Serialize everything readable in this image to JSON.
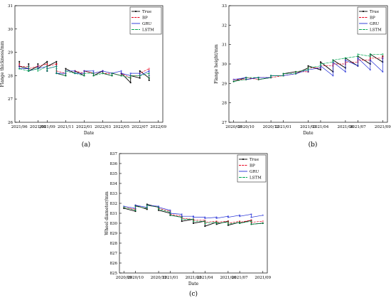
{
  "colors": {
    "True": "#000000",
    "BP": "#e8001c",
    "GRU": "#1f2bd6",
    "LSTM": "#00a651",
    "frame": "#000000"
  },
  "chart_data": [
    {
      "type": "line",
      "panel_label": "(a)",
      "xlabel": "Date",
      "ylabel": "Flange thickness/mm",
      "x_ticks": [
        "2021/06",
        "2021/08",
        "2021/09",
        "2021/11",
        "2022/01",
        "2022/03",
        "2022/05",
        "2022/07",
        "2022/09"
      ],
      "ylim": [
        26,
        31
      ],
      "y_ticks": [
        "26",
        "27",
        "28",
        "29",
        "30",
        "31"
      ],
      "legend": "top-right",
      "grid": false,
      "x": [
        "2021/06",
        "2021/06",
        "2021/07",
        "2021/07",
        "2021/07",
        "2021/08",
        "2021/08",
        "2021/08",
        "2021/09",
        "2021/09",
        "2021/09",
        "2021/10",
        "2021/10",
        "2021/10",
        "2021/11",
        "2021/11",
        "2021/12",
        "2021/12",
        "2022/01",
        "2022/01",
        "2022/02",
        "2022/02",
        "2022/03",
        "2022/03",
        "2022/04",
        "2022/04",
        "2022/05",
        "2022/05",
        "2022/06",
        "2022/06",
        "2022/07",
        "2022/07",
        "2022/08",
        "2022/08"
      ],
      "series": [
        {
          "name": "True",
          "values": [
            28.6,
            28.4,
            28.3,
            28.5,
            28.2,
            28.4,
            28.5,
            28.3,
            28.6,
            28.2,
            28.4,
            28.6,
            28.5,
            28.1,
            28.0,
            28.3,
            28.1,
            28.2,
            28.0,
            28.2,
            28.1,
            28.0,
            28.2,
            28.1,
            28.0,
            28.1,
            28.0,
            28.1,
            27.7,
            28.0,
            27.9,
            28.2,
            27.9,
            27.8
          ]
        },
        {
          "name": "BP",
          "values": [
            28.5,
            28.4,
            28.4,
            28.4,
            28.3,
            28.4,
            28.4,
            28.4,
            28.5,
            28.3,
            28.4,
            28.5,
            28.5,
            28.2,
            28.1,
            28.2,
            28.2,
            28.2,
            28.1,
            28.2,
            28.1,
            28.1,
            28.2,
            28.1,
            28.1,
            28.1,
            28.0,
            28.1,
            27.9,
            28.0,
            28.0,
            28.1,
            28.3,
            28.0
          ]
        },
        {
          "name": "GRU",
          "values": [
            28.4,
            28.3,
            28.3,
            28.4,
            28.2,
            28.3,
            28.4,
            28.3,
            28.4,
            28.2,
            28.3,
            28.4,
            28.4,
            28.1,
            28.1,
            28.2,
            28.2,
            28.1,
            28.1,
            28.2,
            28.2,
            28.1,
            28.2,
            28.2,
            28.1,
            28.1,
            28.2,
            28.1,
            28.0,
            28.1,
            28.1,
            28.0,
            28.2,
            28.0
          ]
        },
        {
          "name": "LSTM",
          "values": [
            28.3,
            28.3,
            28.2,
            28.4,
            28.2,
            28.3,
            28.3,
            28.2,
            28.4,
            28.2,
            28.3,
            28.4,
            28.3,
            28.1,
            28.0,
            28.2,
            28.1,
            28.1,
            28.0,
            28.1,
            28.1,
            28.0,
            28.1,
            28.1,
            28.0,
            28.1,
            28.0,
            28.0,
            27.9,
            28.0,
            28.0,
            28.0,
            28.1,
            27.9
          ]
        }
      ]
    },
    {
      "type": "line",
      "panel_label": "(b)",
      "xlabel": "Date",
      "ylabel": "Flange height/mm",
      "x_ticks": [
        "2020/09",
        "2020/10",
        "2020/12",
        "2021/01",
        "2021/03",
        "2021/04",
        "2021/06",
        "2021/07",
        "2021/09"
      ],
      "ylim": [
        27,
        33
      ],
      "y_ticks": [
        "27",
        "28",
        "29",
        "30",
        "31",
        "32",
        "33"
      ],
      "legend": "top-right",
      "grid": false,
      "x": [
        "2020/09",
        "2020/10",
        "2020/10",
        "2020/11",
        "2020/11",
        "2020/12",
        "2020/12",
        "2021/01",
        "2021/01",
        "2021/02",
        "2021/02",
        "2021/03",
        "2021/03",
        "2021/03",
        "2021/04",
        "2021/04",
        "2021/05",
        "2021/05",
        "2021/06",
        "2021/06",
        "2021/07",
        "2021/07",
        "2021/08",
        "2021/08",
        "2021/09",
        "2021/09"
      ],
      "series": [
        {
          "name": "True",
          "values": [
            29.1,
            29.3,
            29.2,
            29.3,
            29.2,
            29.3,
            29.4,
            29.4,
            29.5,
            29.6,
            29.5,
            29.8,
            29.6,
            29.9,
            29.7,
            30.1,
            29.6,
            30.2,
            29.8,
            30.3,
            29.9,
            30.4,
            30.0,
            30.5,
            30.1,
            30.4
          ]
        },
        {
          "name": "BP",
          "values": [
            29.2,
            29.2,
            29.3,
            29.2,
            29.3,
            29.3,
            29.3,
            29.4,
            29.4,
            29.5,
            29.6,
            29.6,
            29.7,
            29.8,
            29.8,
            29.9,
            29.9,
            30.0,
            30.0,
            30.1,
            30.1,
            30.2,
            30.2,
            30.3,
            30.3,
            30.4
          ]
        },
        {
          "name": "GRU",
          "values": [
            29.2,
            29.3,
            29.2,
            29.3,
            29.3,
            29.3,
            29.4,
            29.4,
            29.4,
            29.5,
            29.5,
            29.7,
            29.6,
            29.7,
            29.8,
            29.9,
            29.4,
            30.1,
            29.6,
            30.2,
            29.9,
            30.3,
            29.7,
            30.2,
            29.6,
            30.3
          ]
        },
        {
          "name": "LSTM",
          "values": [
            29.1,
            29.2,
            29.3,
            29.3,
            29.2,
            29.3,
            29.4,
            29.4,
            29.5,
            29.5,
            29.6,
            29.7,
            29.7,
            29.8,
            29.9,
            30.0,
            30.1,
            30.2,
            30.3,
            30.3,
            30.4,
            30.5,
            30.4,
            30.5,
            30.5,
            30.5
          ]
        }
      ]
    },
    {
      "type": "line",
      "panel_label": "(c)",
      "xlabel": "Date",
      "ylabel": "Wheel diameter/mm",
      "x_ticks": [
        "2020/09",
        "2020/10",
        "2020/12",
        "2021/01",
        "2021/03",
        "2021/04",
        "2021/06",
        "2021/07",
        "2021/09"
      ],
      "ylim": [
        825,
        837
      ],
      "y_ticks": [
        "825",
        "826",
        "827",
        "828",
        "829",
        "830",
        "831",
        "832",
        "833",
        "834",
        "835",
        "836",
        "837"
      ],
      "legend": "top-right",
      "grid": false,
      "x": [
        "2020/09",
        "2020/10",
        "2020/10",
        "2020/11",
        "2020/11",
        "2020/12",
        "2020/12",
        "2021/01",
        "2021/01",
        "2021/02",
        "2021/02",
        "2021/03",
        "2021/03",
        "2021/04",
        "2021/04",
        "2021/05",
        "2021/05",
        "2021/06",
        "2021/06",
        "2021/07",
        "2021/07",
        "2021/08",
        "2021/08",
        "2021/09"
      ],
      "series": [
        {
          "name": "True",
          "values": [
            831.5,
            831.2,
            831.8,
            831.4,
            831.9,
            831.6,
            831.3,
            831.0,
            830.8,
            830.6,
            830.2,
            830.4,
            830.0,
            830.2,
            829.7,
            830.1,
            829.9,
            830.2,
            829.8,
            830.1,
            830.0,
            830.3,
            829.9,
            830.0
          ]
        },
        {
          "name": "BP",
          "values": [
            831.6,
            831.4,
            831.7,
            831.5,
            831.8,
            831.6,
            831.5,
            831.2,
            830.9,
            830.7,
            830.5,
            830.4,
            830.3,
            830.3,
            830.1,
            830.2,
            830.1,
            830.2,
            830.0,
            830.2,
            830.1,
            830.3,
            830.1,
            830.2
          ]
        },
        {
          "name": "GRU",
          "values": [
            831.7,
            831.5,
            831.8,
            831.6,
            831.8,
            831.7,
            831.6,
            831.3,
            831.0,
            830.9,
            830.7,
            830.7,
            830.6,
            830.6,
            830.5,
            830.6,
            830.5,
            830.7,
            830.6,
            830.8,
            830.7,
            830.9,
            830.6,
            830.8
          ]
        },
        {
          "name": "LSTM",
          "values": [
            831.6,
            831.3,
            831.7,
            831.5,
            831.8,
            831.6,
            831.4,
            831.1,
            830.8,
            830.6,
            830.4,
            830.4,
            830.2,
            830.2,
            830.0,
            830.1,
            830.0,
            830.1,
            829.9,
            830.1,
            830.0,
            830.2,
            829.9,
            830.0
          ]
        }
      ]
    }
  ]
}
